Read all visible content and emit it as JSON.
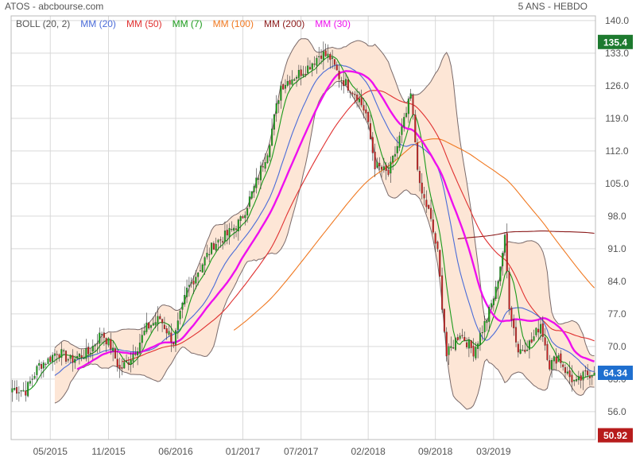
{
  "header": {
    "title": "ATOS - abcbourse.com",
    "period": "5 ANS - HEBDO"
  },
  "legend": [
    {
      "label": "BOLL (20, 2)",
      "color": "#555555"
    },
    {
      "label": "MM (20)",
      "color": "#4a6bd8"
    },
    {
      "label": "MM (50)",
      "color": "#e03030"
    },
    {
      "label": "MM (7)",
      "color": "#1a9a1a"
    },
    {
      "label": "MM (100)",
      "color": "#f07820"
    },
    {
      "label": "MM (200)",
      "color": "#8b1a1a"
    },
    {
      "label": "MM (30)",
      "color": "#ee10ee"
    }
  ],
  "badges": [
    {
      "value": "135.4",
      "color": "#1d7a2f"
    },
    {
      "value": "64.34",
      "color": "#1f6fcf"
    },
    {
      "value": "50.92",
      "color": "#b71c1c"
    }
  ],
  "colors": {
    "candle_up": "#18a818",
    "candle_down": "#d02020",
    "band_fill": "#fde6d6",
    "band_line": "#7a6a6a",
    "grid": "#d9d9d9"
  },
  "chart_data": {
    "type": "candlestick",
    "ylim": [
      50,
      141
    ],
    "yticks": [
      56,
      63,
      70,
      77,
      84,
      91,
      98,
      105,
      112,
      119,
      126,
      133,
      140
    ],
    "xticks": [
      {
        "label": "05/2015",
        "week": 17
      },
      {
        "label": "11/2015",
        "week": 43
      },
      {
        "label": "06/2016",
        "week": 73
      },
      {
        "label": "01/2017",
        "week": 103
      },
      {
        "label": "07/2017",
        "week": 129
      },
      {
        "label": "02/2018",
        "week": 159
      },
      {
        "label": "09/2018",
        "week": 189
      },
      {
        "label": "03/2019",
        "week": 215
      }
    ],
    "week_count": 261,
    "anchors": [
      [
        0,
        61
      ],
      [
        6,
        60.5
      ],
      [
        12,
        66
      ],
      [
        16,
        67
      ],
      [
        20,
        69
      ],
      [
        26,
        67
      ],
      [
        30,
        68
      ],
      [
        34,
        68.5
      ],
      [
        40,
        73
      ],
      [
        44,
        70
      ],
      [
        48,
        65
      ],
      [
        52,
        67
      ],
      [
        56,
        70
      ],
      [
        60,
        74
      ],
      [
        66,
        76
      ],
      [
        72,
        71
      ],
      [
        78,
        82
      ],
      [
        84,
        87
      ],
      [
        90,
        92
      ],
      [
        96,
        94
      ],
      [
        102,
        97
      ],
      [
        108,
        104
      ],
      [
        114,
        112
      ],
      [
        120,
        126
      ],
      [
        126,
        128
      ],
      [
        132,
        130
      ],
      [
        138,
        133
      ],
      [
        142,
        132
      ],
      [
        146,
        128
      ],
      [
        150,
        126
      ],
      [
        154,
        124
      ],
      [
        158,
        120
      ],
      [
        162,
        109
      ],
      [
        168,
        107
      ],
      [
        172,
        113
      ],
      [
        176,
        120
      ],
      [
        178,
        124
      ],
      [
        182,
        104
      ],
      [
        186,
        99
      ],
      [
        190,
        90
      ],
      [
        194,
        68
      ],
      [
        200,
        73
      ],
      [
        206,
        69
      ],
      [
        212,
        76
      ],
      [
        216,
        82
      ],
      [
        220,
        93
      ],
      [
        222,
        79
      ],
      [
        226,
        69
      ],
      [
        232,
        71
      ],
      [
        236,
        75
      ],
      [
        240,
        66
      ],
      [
        244,
        68
      ],
      [
        248,
        64
      ],
      [
        252,
        62
      ],
      [
        256,
        64
      ],
      [
        260,
        64.34
      ]
    ],
    "series": [
      {
        "name": "BOLL (20, 2)",
        "period": 20
      },
      {
        "name": "MM (20)",
        "period": 20
      },
      {
        "name": "MM (50)",
        "period": 50
      },
      {
        "name": "MM (7)",
        "period": 7
      },
      {
        "name": "MM (100)",
        "period": 100
      },
      {
        "name": "MM (200)",
        "period": 200
      },
      {
        "name": "MM (30)",
        "period": 30
      }
    ],
    "last_close": 64.34,
    "period_high": 135.4,
    "period_low": 50.92
  }
}
